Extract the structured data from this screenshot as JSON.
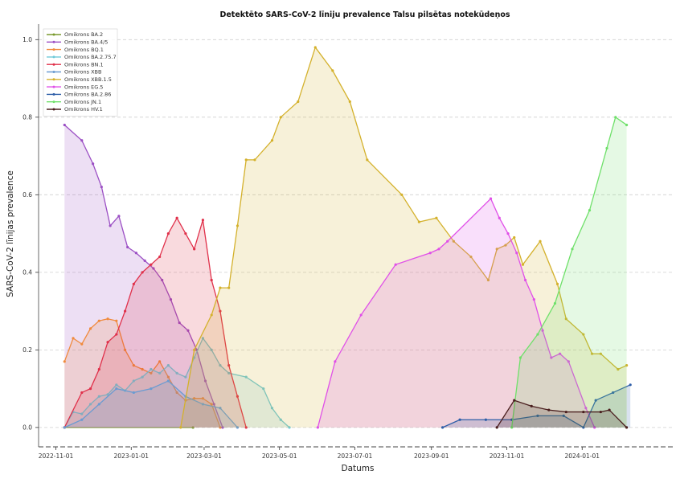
{
  "chart_data": {
    "type": "area",
    "title": "Detektēto SARS-CoV-2 līniju prevalence Talsu pilsētas notekūdeņos",
    "xlabel": "Datums",
    "ylabel": "SARS-CoV-2 līnijas prevalence",
    "x_ticks": [
      "2022-11-01",
      "2023-01-01",
      "2023-03-01",
      "2023-05-01",
      "2023-07-01",
      "2023-09-01",
      "2023-11-01",
      "2024-01-01"
    ],
    "y_ticks": [
      "0.0",
      "0.2",
      "0.4",
      "0.6",
      "0.8",
      "1.0"
    ],
    "xlim": [
      "2022-10-18",
      "2024-03-15"
    ],
    "ylim": [
      -0.05,
      1.04
    ],
    "grid": "horizontal dashed",
    "legend_position": "top-left",
    "series": [
      {
        "name": "Omikrons BA.2",
        "color": "#7a9a2e",
        "points": [
          [
            "2022-11-08",
            0.0
          ],
          [
            "2023-02-20",
            0.0
          ]
        ]
      },
      {
        "name": "Omikrons BA.4/5",
        "color": "#9b4fc4",
        "points": [
          [
            "2022-11-08",
            0.78
          ],
          [
            "2022-11-22",
            0.74
          ],
          [
            "2022-12-01",
            0.68
          ],
          [
            "2022-12-08",
            0.62
          ],
          [
            "2022-12-15",
            0.52
          ],
          [
            "2022-12-22",
            0.545
          ],
          [
            "2022-12-29",
            0.465
          ],
          [
            "2023-01-05",
            0.45
          ],
          [
            "2023-01-12",
            0.43
          ],
          [
            "2023-01-19",
            0.41
          ],
          [
            "2023-01-26",
            0.38
          ],
          [
            "2023-02-02",
            0.33
          ],
          [
            "2023-02-09",
            0.27
          ],
          [
            "2023-02-16",
            0.25
          ],
          [
            "2023-02-23",
            0.2
          ],
          [
            "2023-03-02",
            0.12
          ],
          [
            "2023-03-09",
            0.06
          ],
          [
            "2023-03-16",
            0.0
          ]
        ]
      },
      {
        "name": "Omikrons BQ.1",
        "color": "#f08a3c",
        "points": [
          [
            "2022-11-08",
            0.17
          ],
          [
            "2022-11-15",
            0.23
          ],
          [
            "2022-11-22",
            0.215
          ],
          [
            "2022-11-29",
            0.255
          ],
          [
            "2022-12-06",
            0.275
          ],
          [
            "2022-12-13",
            0.28
          ],
          [
            "2022-12-20",
            0.275
          ],
          [
            "2022-12-27",
            0.2
          ],
          [
            "2023-01-03",
            0.16
          ],
          [
            "2023-01-10",
            0.15
          ],
          [
            "2023-01-17",
            0.14
          ],
          [
            "2023-01-24",
            0.17
          ],
          [
            "2023-01-31",
            0.13
          ],
          [
            "2023-02-07",
            0.09
          ],
          [
            "2023-02-14",
            0.07
          ],
          [
            "2023-02-21",
            0.075
          ],
          [
            "2023-02-28",
            0.075
          ],
          [
            "2023-03-07",
            0.06
          ],
          [
            "2023-03-14",
            0.0
          ]
        ]
      },
      {
        "name": "Omikrons BA.2.75.7",
        "color": "#6ec9d8",
        "points": [
          [
            "2022-11-08",
            0.0
          ],
          [
            "2022-11-15",
            0.04
          ],
          [
            "2022-11-22",
            0.035
          ],
          [
            "2022-11-29",
            0.06
          ],
          [
            "2022-12-06",
            0.08
          ],
          [
            "2022-12-13",
            0.085
          ],
          [
            "2022-12-20",
            0.11
          ],
          [
            "2022-12-27",
            0.095
          ],
          [
            "2023-01-03",
            0.12
          ],
          [
            "2023-01-10",
            0.13
          ],
          [
            "2023-01-17",
            0.15
          ],
          [
            "2023-01-24",
            0.14
          ],
          [
            "2023-01-31",
            0.16
          ],
          [
            "2023-02-07",
            0.14
          ],
          [
            "2023-02-14",
            0.13
          ],
          [
            "2023-02-21",
            0.18
          ],
          [
            "2023-02-28",
            0.23
          ],
          [
            "2023-03-07",
            0.2
          ],
          [
            "2023-03-14",
            0.16
          ],
          [
            "2023-03-21",
            0.14
          ],
          [
            "2023-04-04",
            0.13
          ],
          [
            "2023-04-18",
            0.1
          ],
          [
            "2023-04-25",
            0.05
          ],
          [
            "2023-05-02",
            0.02
          ],
          [
            "2023-05-09",
            0.0
          ]
        ]
      },
      {
        "name": "Omikrons BN.1",
        "color": "#e0304a",
        "points": [
          [
            "2022-11-08",
            0.0
          ],
          [
            "2022-11-22",
            0.09
          ],
          [
            "2022-11-29",
            0.1
          ],
          [
            "2022-12-06",
            0.15
          ],
          [
            "2022-12-13",
            0.22
          ],
          [
            "2022-12-20",
            0.24
          ],
          [
            "2022-12-27",
            0.3
          ],
          [
            "2023-01-03",
            0.37
          ],
          [
            "2023-01-10",
            0.4
          ],
          [
            "2023-01-17",
            0.42
          ],
          [
            "2023-01-24",
            0.44
          ],
          [
            "2023-01-31",
            0.5
          ],
          [
            "2023-02-07",
            0.54
          ],
          [
            "2023-02-14",
            0.5
          ],
          [
            "2023-02-21",
            0.46
          ],
          [
            "2023-02-28",
            0.535
          ],
          [
            "2023-03-07",
            0.38
          ],
          [
            "2023-03-14",
            0.3
          ],
          [
            "2023-03-21",
            0.16
          ],
          [
            "2023-03-28",
            0.08
          ],
          [
            "2023-04-04",
            0.0
          ]
        ]
      },
      {
        "name": "Omikrons XBB",
        "color": "#6b9bd1",
        "points": [
          [
            "2022-11-08",
            0.0
          ],
          [
            "2022-11-22",
            0.02
          ],
          [
            "2022-12-06",
            0.06
          ],
          [
            "2022-12-20",
            0.1
          ],
          [
            "2023-01-03",
            0.09
          ],
          [
            "2023-01-17",
            0.1
          ],
          [
            "2023-01-31",
            0.12
          ],
          [
            "2023-02-14",
            0.08
          ],
          [
            "2023-02-28",
            0.06
          ],
          [
            "2023-03-14",
            0.05
          ],
          [
            "2023-03-28",
            0.0
          ]
        ]
      },
      {
        "name": "Omikrons XBB.1.5",
        "color": "#d4b12c",
        "points": [
          [
            "2023-02-10",
            0.0
          ],
          [
            "2023-02-21",
            0.2
          ],
          [
            "2023-03-07",
            0.29
          ],
          [
            "2023-03-14",
            0.36
          ],
          [
            "2023-03-21",
            0.36
          ],
          [
            "2023-03-28",
            0.52
          ],
          [
            "2023-04-04",
            0.69
          ],
          [
            "2023-04-11",
            0.69
          ],
          [
            "2023-04-25",
            0.74
          ],
          [
            "2023-05-02",
            0.8
          ],
          [
            "2023-05-16",
            0.84
          ],
          [
            "2023-05-30",
            0.98
          ],
          [
            "2023-06-13",
            0.92
          ],
          [
            "2023-06-27",
            0.84
          ],
          [
            "2023-07-11",
            0.69
          ],
          [
            "2023-08-08",
            0.6
          ],
          [
            "2023-08-22",
            0.53
          ],
          [
            "2023-09-05",
            0.54
          ],
          [
            "2023-09-19",
            0.48
          ],
          [
            "2023-10-03",
            0.44
          ],
          [
            "2023-10-17",
            0.38
          ],
          [
            "2023-10-24",
            0.46
          ],
          [
            "2023-10-31",
            0.47
          ],
          [
            "2023-11-07",
            0.49
          ],
          [
            "2023-11-14",
            0.42
          ],
          [
            "2023-11-28",
            0.48
          ],
          [
            "2023-12-12",
            0.37
          ],
          [
            "2023-12-19",
            0.28
          ],
          [
            "2024-01-02",
            0.24
          ],
          [
            "2024-01-09",
            0.19
          ],
          [
            "2024-01-16",
            0.19
          ],
          [
            "2024-01-30",
            0.15
          ],
          [
            "2024-02-06",
            0.16
          ]
        ]
      },
      {
        "name": "Omikrons EG.5",
        "color": "#e050e8",
        "points": [
          [
            "2023-06-01",
            0.0
          ],
          [
            "2023-06-15",
            0.17
          ],
          [
            "2023-07-06",
            0.29
          ],
          [
            "2023-08-03",
            0.42
          ],
          [
            "2023-08-31",
            0.45
          ],
          [
            "2023-09-07",
            0.46
          ],
          [
            "2023-09-14",
            0.48
          ],
          [
            "2023-10-19",
            0.59
          ],
          [
            "2023-10-26",
            0.54
          ],
          [
            "2023-11-02",
            0.5
          ],
          [
            "2023-11-09",
            0.45
          ],
          [
            "2023-11-16",
            0.38
          ],
          [
            "2023-11-23",
            0.33
          ],
          [
            "2023-11-30",
            0.25
          ],
          [
            "2023-12-07",
            0.18
          ],
          [
            "2023-12-14",
            0.19
          ],
          [
            "2023-12-21",
            0.17
          ],
          [
            "2024-01-04",
            0.05
          ],
          [
            "2024-01-11",
            0.0
          ]
        ]
      },
      {
        "name": "Omikrons BA.2.86",
        "color": "#2e5ea8",
        "points": [
          [
            "2023-09-10",
            0.0
          ],
          [
            "2023-09-24",
            0.02
          ],
          [
            "2023-10-15",
            0.02
          ],
          [
            "2023-11-05",
            0.02
          ],
          [
            "2023-11-26",
            0.03
          ],
          [
            "2023-12-17",
            0.03
          ],
          [
            "2024-01-02",
            0.0
          ],
          [
            "2024-01-12",
            0.07
          ],
          [
            "2024-01-26",
            0.09
          ],
          [
            "2024-02-09",
            0.11
          ]
        ]
      },
      {
        "name": "Omikrons JN.1",
        "color": "#6fe06a",
        "points": [
          [
            "2023-11-05",
            0.0
          ],
          [
            "2023-11-12",
            0.18
          ],
          [
            "2023-11-26",
            0.24
          ],
          [
            "2023-12-10",
            0.32
          ],
          [
            "2023-12-24",
            0.46
          ],
          [
            "2024-01-07",
            0.56
          ],
          [
            "2024-01-21",
            0.72
          ],
          [
            "2024-01-28",
            0.8
          ],
          [
            "2024-02-06",
            0.78
          ]
        ]
      },
      {
        "name": "Omikrons HV.1",
        "color": "#4a1e1e",
        "points": [
          [
            "2023-10-24",
            0.0
          ],
          [
            "2023-11-07",
            0.07
          ],
          [
            "2023-11-21",
            0.055
          ],
          [
            "2023-12-05",
            0.045
          ],
          [
            "2023-12-19",
            0.04
          ],
          [
            "2024-01-02",
            0.04
          ],
          [
            "2024-01-16",
            0.04
          ],
          [
            "2024-01-23",
            0.045
          ],
          [
            "2024-02-06",
            0.0
          ]
        ]
      }
    ]
  }
}
